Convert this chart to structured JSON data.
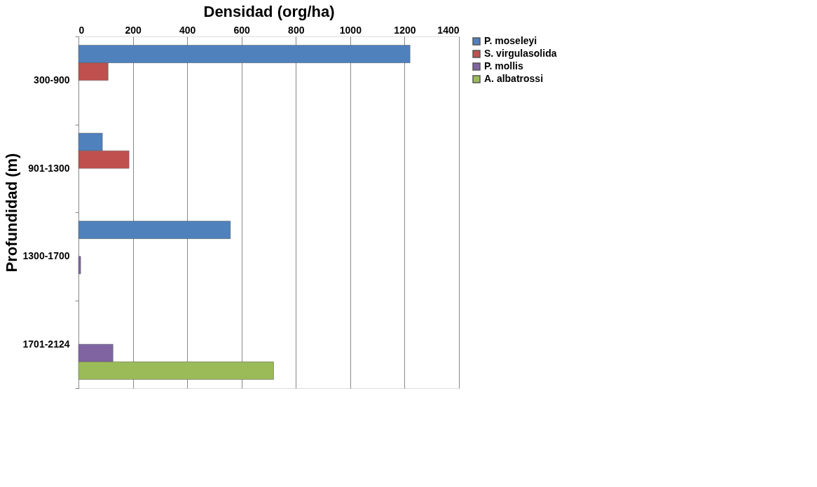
{
  "chart_data": {
    "type": "bar",
    "orientation": "horizontal",
    "xlabel": "Densidad (org/ha)",
    "ylabel": "Profundidad (m)",
    "categories": [
      "300-900",
      "901-1300",
      "1300-1700",
      "1701-2124"
    ],
    "series": [
      {
        "name": "P. moseleyi",
        "color": "#4f81bd",
        "values": [
          1220,
          88,
          559,
          null
        ]
      },
      {
        "name": "S. virgulasolida",
        "color": "#c0504d",
        "values": [
          109,
          186,
          null,
          null
        ]
      },
      {
        "name": "P. mollis",
        "color": "#8064a2",
        "values": [
          null,
          null,
          8,
          127
        ]
      },
      {
        "name": "A. albatrossi",
        "color": "#9bbb59",
        "values": [
          null,
          null,
          null,
          718
        ]
      }
    ],
    "xlim": [
      0,
      1400
    ],
    "xticks": [
      0,
      200,
      400,
      600,
      800,
      1000,
      1200,
      1400
    ],
    "grid": "x",
    "legend": "right"
  }
}
